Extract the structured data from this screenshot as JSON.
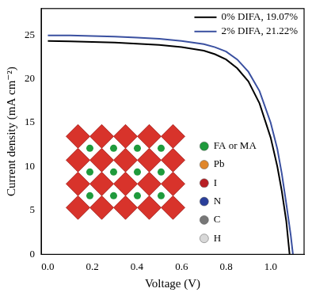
{
  "chart_data": {
    "type": "line",
    "x_label": "Voltage (V)",
    "y_label": "Current density (mA cm⁻²)",
    "xlim": [
      -0.03,
      1.15
    ],
    "xticks": [
      {
        "value": 0,
        "label": "0.0"
      },
      {
        "value": 0.2,
        "label": "0.2"
      },
      {
        "value": 0.4,
        "label": "0.4"
      },
      {
        "value": 0.6,
        "label": "0.6"
      },
      {
        "value": 0.8,
        "label": "0.8"
      },
      {
        "value": 1,
        "label": "1.0"
      }
    ],
    "ylim": [
      0,
      28
    ],
    "yticks": [
      0,
      5,
      10,
      15,
      20,
      25
    ],
    "grid": false,
    "legend": "upper right",
    "series": [
      {
        "name": "0% DIFA, 19.07%",
        "color": "#000000",
        "x": [
          0,
          0.1,
          0.2,
          0.3,
          0.4,
          0.5,
          0.6,
          0.7,
          0.75,
          0.8,
          0.85,
          0.9,
          0.95,
          1.0,
          1.03,
          1.05,
          1.07,
          1.085
        ],
        "values": [
          24.3,
          24.27,
          24.2,
          24.12,
          24.0,
          23.85,
          23.6,
          23.2,
          22.8,
          22.2,
          21.2,
          19.7,
          17.2,
          13.3,
          10.0,
          7.2,
          3.8,
          0
        ]
      },
      {
        "name": "2% DIFA, 21.22%",
        "color": "#3a50a0",
        "x": [
          0,
          0.1,
          0.2,
          0.3,
          0.4,
          0.5,
          0.6,
          0.7,
          0.75,
          0.8,
          0.85,
          0.9,
          0.95,
          1.0,
          1.03,
          1.05,
          1.07,
          1.09,
          1.1
        ],
        "values": [
          24.95,
          24.93,
          24.88,
          24.8,
          24.7,
          24.55,
          24.3,
          23.95,
          23.6,
          23.1,
          22.2,
          20.8,
          18.6,
          15.0,
          12.0,
          9.2,
          5.8,
          2.2,
          0
        ]
      }
    ],
    "annotations": [
      {
        "text": "FA or MA",
        "color": "#1f9a3c"
      },
      {
        "text": "Pb",
        "color": "#e0862a"
      },
      {
        "text": "I",
        "color": "#b81e24"
      },
      {
        "text": "N",
        "color": "#2a3f9a"
      },
      {
        "text": "C",
        "color": "#777777"
      },
      {
        "text": "H",
        "color": "#d8d8d8"
      }
    ]
  }
}
